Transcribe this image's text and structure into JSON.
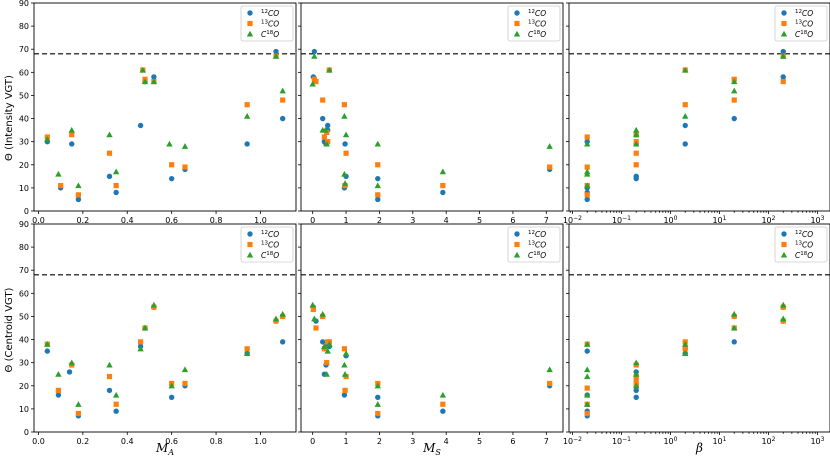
{
  "figure": {
    "ylabel_top": "Θ (Intensity VGT)",
    "ylabel_bottom": "Θ (Centroid VGT)",
    "threshold": 68,
    "colors": {
      "12CO": "#1f77b4",
      "13CO": "#ff7f0e",
      "C18O": "#2ca02c"
    }
  },
  "legend": [
    {
      "sup": "12",
      "base": "CO",
      "prefix": "",
      "marker": "circle",
      "color": "#1f77b4"
    },
    {
      "sup": "13",
      "base": "CO",
      "prefix": "",
      "marker": "square",
      "color": "#ff7f0e"
    },
    {
      "sup": "18",
      "base": "O",
      "prefix": "C",
      "marker": "triangle",
      "color": "#2ca02c"
    }
  ],
  "columns": [
    {
      "xlabel_main": "M",
      "xlabel_sub": "A",
      "xscale": "linear",
      "xlim": [
        -0.02,
        1.16
      ],
      "xticks": [
        0.0,
        0.2,
        0.4,
        0.6,
        0.8,
        1.0
      ],
      "xtick_labels": [
        "0.0",
        "0.2",
        "0.4",
        "0.6",
        "0.8",
        "1.0"
      ]
    },
    {
      "xlabel_main": "M",
      "xlabel_sub": "S",
      "xscale": "linear",
      "xlim": [
        -0.35,
        7.5
      ],
      "xticks": [
        0,
        1,
        2,
        3,
        4,
        5,
        6,
        7
      ],
      "xtick_labels": [
        "0",
        "1",
        "2",
        "3",
        "4",
        "5",
        "6",
        "7"
      ]
    },
    {
      "xlabel_main": "β",
      "xlabel_sub": "",
      "xscale": "log",
      "xlim": [
        0.0085,
        1800
      ],
      "xticks": [
        0.01,
        0.1,
        1,
        10,
        100,
        1000
      ],
      "xtick_labels": [
        "10−2",
        "10−1",
        "100",
        "101",
        "102",
        "103"
      ],
      "xtick_base": [
        "10",
        "10",
        "10",
        "10",
        "10",
        "10"
      ],
      "xtick_exp": [
        "−2",
        "−1",
        "0",
        "1",
        "2",
        "3"
      ]
    }
  ],
  "rows": [
    {
      "ylim": [
        0,
        90
      ],
      "yticks": [
        0,
        10,
        20,
        30,
        40,
        50,
        60,
        70,
        80,
        90
      ],
      "ytick_labels": [
        "0",
        "10",
        "20",
        "30",
        "40",
        "50",
        "60",
        "70",
        "80",
        "90"
      ]
    },
    {
      "ylim": [
        0,
        90
      ],
      "yticks": [
        0,
        10,
        20,
        30,
        40,
        50,
        60,
        70,
        80,
        90
      ],
      "ytick_labels": [
        "0",
        "10",
        "20",
        "30",
        "40",
        "50",
        "60",
        "70",
        "80",
        "90"
      ]
    }
  ],
  "chart_data": [
    {
      "type": "scatter",
      "panel": "top-left",
      "xlabel": "M_A",
      "ylabel": "Θ (Intensity VGT)",
      "ylim": [
        0,
        90
      ],
      "threshold": 68,
      "series": [
        {
          "name": "12CO",
          "x": [
            0.04,
            0.1,
            0.15,
            0.18,
            0.32,
            0.35,
            0.46,
            0.48,
            0.52,
            0.6,
            0.66,
            0.94,
            1.07,
            1.1
          ],
          "y": [
            30,
            10,
            29,
            5,
            15,
            8,
            37,
            56,
            58,
            14,
            18,
            29,
            69,
            40
          ]
        },
        {
          "name": "13CO",
          "x": [
            0.04,
            0.1,
            0.15,
            0.18,
            0.32,
            0.35,
            0.47,
            0.48,
            0.52,
            0.6,
            0.66,
            0.94,
            1.07,
            1.1
          ],
          "y": [
            32,
            11,
            33,
            7,
            25,
            11,
            61,
            57,
            56,
            20,
            19,
            46,
            67,
            48
          ]
        },
        {
          "name": "C18O",
          "x": [
            0.04,
            0.09,
            0.15,
            0.18,
            0.32,
            0.35,
            0.47,
            0.48,
            0.52,
            0.59,
            0.66,
            0.94,
            1.07,
            1.1
          ],
          "y": [
            31,
            16,
            35,
            11,
            33,
            17,
            61,
            56,
            56,
            29,
            28,
            41,
            67,
            52
          ]
        }
      ]
    },
    {
      "type": "scatter",
      "panel": "top-middle",
      "xlabel": "M_S",
      "ylabel": "",
      "ylim": [
        0,
        90
      ],
      "threshold": 68,
      "series": [
        {
          "name": "12CO",
          "x": [
            0.02,
            0.05,
            0.3,
            0.35,
            0.4,
            0.45,
            0.45,
            0.5,
            0.95,
            0.97,
            1.0,
            1.95,
            1.95,
            3.9,
            7.1
          ],
          "y": [
            58,
            69,
            40,
            30,
            29,
            37,
            35,
            61,
            10,
            29,
            15,
            14,
            5,
            8,
            18
          ]
        },
        {
          "name": "13CO",
          "x": [
            0.05,
            0.1,
            0.3,
            0.35,
            0.42,
            0.45,
            0.5,
            0.95,
            0.97,
            1.0,
            1.95,
            1.95,
            3.9,
            7.1
          ],
          "y": [
            57,
            56,
            48,
            32,
            34,
            30,
            61,
            46,
            11,
            25,
            20,
            7,
            11,
            19
          ]
        },
        {
          "name": "C18O",
          "x": [
            0.0,
            0.05,
            0.3,
            0.38,
            0.42,
            0.5,
            0.95,
            0.95,
            0.97,
            1.0,
            1.95,
            1.95,
            3.9,
            7.1
          ],
          "y": [
            55,
            67,
            35,
            35,
            29,
            61,
            16,
            41,
            12,
            33,
            29,
            11,
            17,
            28
          ]
        }
      ]
    },
    {
      "type": "scatter",
      "panel": "top-right",
      "xlabel": "β",
      "ylabel": "",
      "xscale": "log",
      "ylim": [
        0,
        90
      ],
      "threshold": 68,
      "series": [
        {
          "name": "12CO",
          "x": [
            0.02,
            0.02,
            0.02,
            0.02,
            0.2,
            0.2,
            0.2,
            0.2,
            2,
            2,
            20,
            200,
            200
          ],
          "y": [
            5,
            8,
            10,
            30,
            14,
            15,
            29,
            33,
            29,
            37,
            40,
            69,
            58
          ]
        },
        {
          "name": "13CO",
          "x": [
            0.02,
            0.02,
            0.02,
            0.02,
            0.2,
            0.2,
            0.2,
            0.2,
            2,
            2,
            20,
            20,
            200,
            200
          ],
          "y": [
            7,
            11,
            19,
            32,
            20,
            25,
            30,
            33,
            46,
            61,
            48,
            57,
            56,
            67
          ]
        },
        {
          "name": "C18O",
          "x": [
            0.02,
            0.02,
            0.02,
            0.02,
            0.2,
            0.2,
            0.2,
            2,
            2,
            20,
            20,
            200
          ],
          "y": [
            11,
            16,
            17,
            29,
            29,
            33,
            35,
            41,
            61,
            52,
            56,
            67
          ]
        }
      ]
    },
    {
      "type": "scatter",
      "panel": "bottom-left",
      "xlabel": "M_A",
      "ylabel": "Θ (Centroid VGT)",
      "ylim": [
        0,
        90
      ],
      "threshold": 68,
      "series": [
        {
          "name": "12CO",
          "x": [
            0.04,
            0.09,
            0.14,
            0.18,
            0.32,
            0.35,
            0.46,
            0.48,
            0.52,
            0.6,
            0.66,
            0.94,
            1.07,
            1.1
          ],
          "y": [
            35,
            16,
            26,
            7,
            18,
            9,
            37,
            45,
            54,
            15,
            20,
            34,
            48,
            39
          ]
        },
        {
          "name": "13CO",
          "x": [
            0.04,
            0.09,
            0.15,
            0.18,
            0.32,
            0.35,
            0.46,
            0.48,
            0.52,
            0.6,
            0.66,
            0.94,
            1.07,
            1.1
          ],
          "y": [
            38,
            18,
            29,
            8,
            24,
            12,
            39,
            45,
            54,
            21,
            21,
            36,
            48,
            50
          ]
        },
        {
          "name": "C18O",
          "x": [
            0.04,
            0.09,
            0.15,
            0.18,
            0.32,
            0.35,
            0.46,
            0.48,
            0.52,
            0.6,
            0.66,
            0.94,
            1.07,
            1.1
          ],
          "y": [
            38,
            25,
            30,
            12,
            29,
            16,
            36,
            45,
            55,
            20,
            27,
            34,
            49,
            51
          ]
        }
      ]
    },
    {
      "type": "scatter",
      "panel": "bottom-middle",
      "xlabel": "M_S",
      "ylabel": "",
      "ylim": [
        0,
        90
      ],
      "threshold": 68,
      "series": [
        {
          "name": "12CO",
          "x": [
            0.02,
            0.1,
            0.3,
            0.35,
            0.4,
            0.45,
            0.5,
            0.95,
            0.97,
            1.0,
            1.95,
            1.95,
            3.9,
            7.1
          ],
          "y": [
            54,
            48,
            39,
            25,
            29,
            38,
            37,
            16,
            18,
            33,
            15,
            7,
            9,
            20
          ]
        },
        {
          "name": "13CO",
          "x": [
            0.02,
            0.1,
            0.3,
            0.35,
            0.42,
            0.45,
            0.5,
            0.95,
            0.97,
            1.0,
            1.95,
            1.95,
            3.9,
            7.1
          ],
          "y": [
            53,
            45,
            50,
            36,
            30,
            39,
            39,
            36,
            18,
            24,
            21,
            8,
            12,
            21
          ]
        },
        {
          "name": "C18O",
          "x": [
            0.0,
            0.05,
            0.3,
            0.35,
            0.42,
            0.45,
            0.5,
            0.95,
            0.97,
            1.0,
            1.95,
            1.95,
            3.9,
            7.1
          ],
          "y": [
            55,
            49,
            51,
            37,
            25,
            35,
            38,
            29,
            25,
            34,
            12,
            20,
            16,
            27
          ]
        }
      ]
    },
    {
      "type": "scatter",
      "panel": "bottom-right",
      "xlabel": "β",
      "ylabel": "",
      "xscale": "log",
      "ylim": [
        0,
        90
      ],
      "threshold": 68,
      "series": [
        {
          "name": "12CO",
          "x": [
            0.02,
            0.02,
            0.02,
            0.02,
            0.2,
            0.2,
            0.2,
            0.2,
            2,
            2,
            20,
            200,
            200
          ],
          "y": [
            7,
            9,
            16,
            35,
            15,
            18,
            20,
            26,
            34,
            36,
            39,
            48,
            54
          ]
        },
        {
          "name": "13CO",
          "x": [
            0.02,
            0.02,
            0.02,
            0.02,
            0.2,
            0.2,
            0.2,
            0.2,
            2,
            2,
            20,
            20,
            200,
            200
          ],
          "y": [
            8,
            12,
            19,
            38,
            20,
            22,
            24,
            29,
            36,
            39,
            45,
            50,
            48,
            54
          ]
        },
        {
          "name": "C18O",
          "x": [
            0.02,
            0.02,
            0.02,
            0.02,
            0.02,
            0.2,
            0.2,
            0.2,
            2,
            2,
            20,
            20,
            200,
            200
          ],
          "y": [
            12,
            16,
            24,
            27,
            38,
            20,
            25,
            30,
            34,
            38,
            45,
            51,
            49,
            55
          ]
        }
      ]
    }
  ]
}
